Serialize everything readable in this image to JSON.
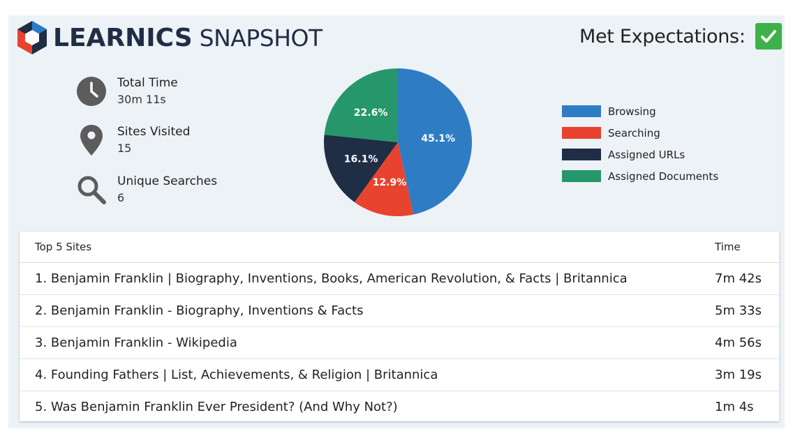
{
  "brand": {
    "name": "LEARNICS",
    "subtitle": "SNAPSHOT",
    "icon": "hexagon-logo-icon",
    "colors": {
      "navy": "#1f2d45",
      "blue": "#2b7cc4",
      "red": "#e8432f"
    }
  },
  "expectations": {
    "label": "Met Expectations:",
    "icon": "checkmark-icon",
    "color": "#3eb14a"
  },
  "stats": [
    {
      "label": "Total Time",
      "value": "30m 11s",
      "icon": "clock-icon"
    },
    {
      "label": "Sites Visited",
      "value": "15",
      "icon": "map-pin-icon"
    },
    {
      "label": "Unique Searches",
      "value": "6",
      "icon": "search-icon"
    }
  ],
  "chart_data": {
    "type": "pie",
    "slices": [
      {
        "label": "Browsing",
        "value": 45.1,
        "display": "45.1%",
        "color": "#2e7dc4"
      },
      {
        "label": "Searching",
        "value": 12.9,
        "display": "12.9%",
        "color": "#e8432f"
      },
      {
        "label": "Assigned URLs",
        "value": 16.1,
        "display": "16.1%",
        "color": "#1f2d45"
      },
      {
        "label": "Assigned Documents",
        "value": 22.6,
        "display": "22.6%",
        "color": "#25976a"
      }
    ],
    "legend_position": "right"
  },
  "table": {
    "header_site": "Top 5 Sites",
    "header_time": "Time",
    "rows": [
      {
        "site": "1. Benjamin Franklin | Biography, Inventions, Books, American Revolution, & Facts | Britannica",
        "time": "7m 42s"
      },
      {
        "site": "2. Benjamin Franklin - Biography, Inventions & Facts",
        "time": "5m 33s"
      },
      {
        "site": "3. Benjamin Franklin - Wikipedia",
        "time": "4m 56s"
      },
      {
        "site": "4. Founding Fathers | List, Achievements, & Religion | Britannica",
        "time": "3m 19s"
      },
      {
        "site": "5. Was Benjamin Franklin Ever President? (And Why Not?)",
        "time": "1m 4s"
      }
    ]
  }
}
